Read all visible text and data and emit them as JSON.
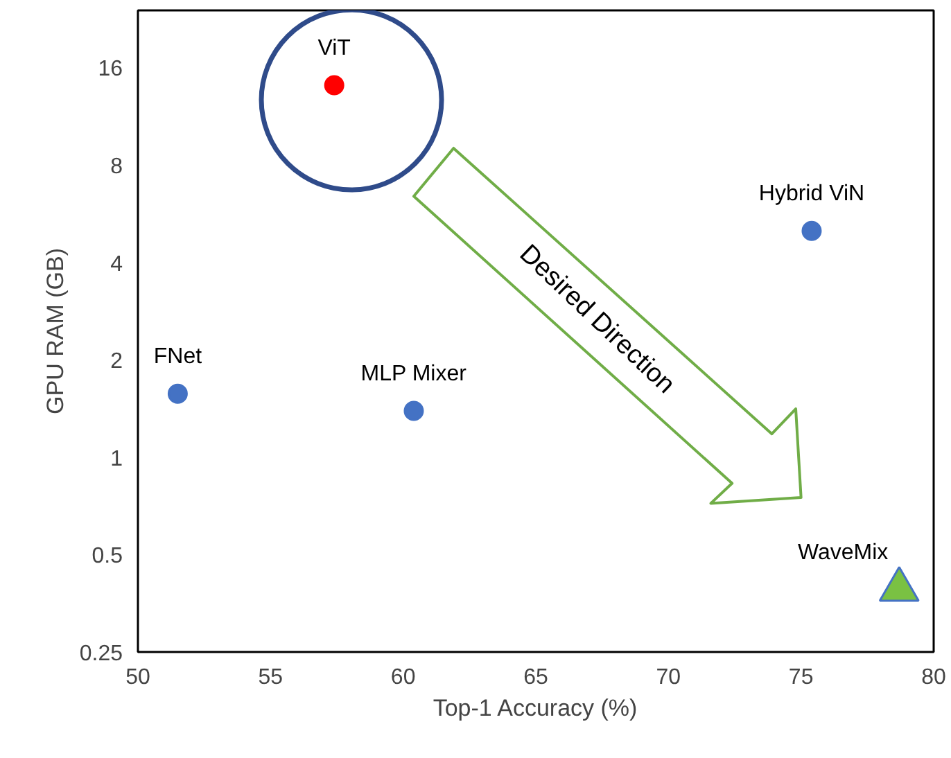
{
  "chart_data": {
    "type": "scatter",
    "xlabel": "Top-1 Accuracy (%)",
    "ylabel": "GPU RAM (GB)",
    "log": "y",
    "grid": false,
    "xlim": [
      50,
      80
    ],
    "xticks": [
      50,
      55,
      60,
      65,
      70,
      75,
      80
    ],
    "ylim": [
      0.25,
      24
    ],
    "yticks": [
      0.25,
      0.5,
      1,
      2,
      4,
      8,
      16
    ],
    "series": [
      {
        "color": "#4472c4",
        "marker": "circle",
        "x": [
          51.5,
          60.4,
          75.4
        ],
        "values": [
          1.57,
          1.39,
          5.0
        ]
      },
      {
        "color": "#ff0000",
        "marker": "circle",
        "x": [
          57.4
        ],
        "values": [
          14.1
        ]
      },
      {
        "color": "#7ac143",
        "marker": "triangle",
        "x": [
          78.7
        ],
        "values": [
          0.39
        ]
      }
    ],
    "annotations": [
      {
        "text": "ViT",
        "x": 57.4,
        "y": 14.1
      },
      {
        "text": "Hybrid ViN",
        "x": 75.4,
        "y": 5.0
      },
      {
        "text": "FNet",
        "x": 51.5,
        "y": 1.57
      },
      {
        "text": "MLP Mixer",
        "x": 60.4,
        "y": 1.39
      },
      {
        "text": "WaveMix",
        "x": 78.7,
        "y": 0.39
      },
      "Desired Direction"
    ]
  }
}
